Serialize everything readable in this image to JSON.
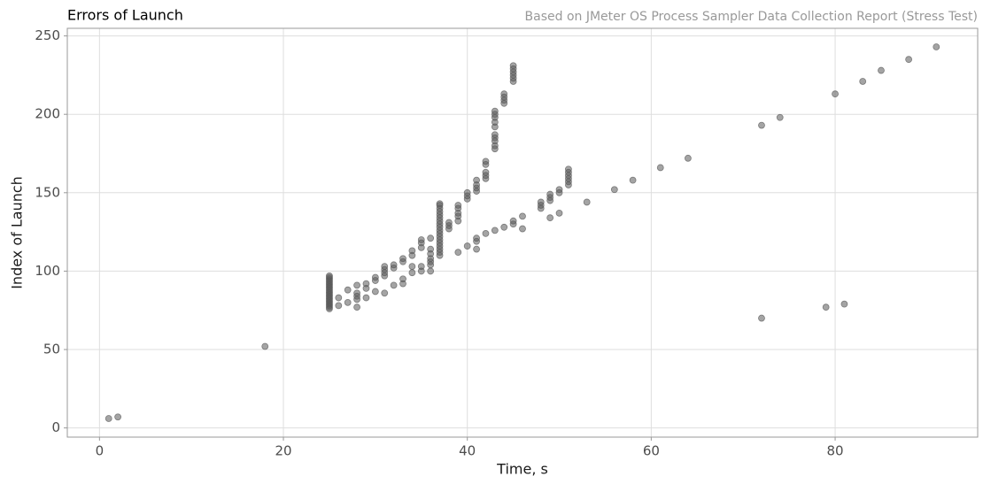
{
  "chart_data": {
    "type": "scatter",
    "title": "Errors of Launch",
    "subtitle": "Based on JMeter OS Process Sampler Data Collection Report (Stress Test)",
    "x_label": "Time, s",
    "y_label": "Index of Launch",
    "color": "#595959",
    "grid": true,
    "xlim": [
      -3.5,
      95.5
    ],
    "ylim": [
      -5.85,
      254.85
    ],
    "xticks": [
      0,
      20,
      40,
      60,
      80
    ],
    "yticks": [
      0,
      50,
      100,
      150,
      200,
      250
    ],
    "x": [
      1,
      2,
      18,
      25,
      25,
      25,
      25,
      25,
      25,
      25,
      25,
      25,
      25,
      25,
      25,
      25,
      25,
      25,
      25,
      25,
      25,
      25,
      25,
      25,
      25,
      26,
      26,
      27,
      27,
      28,
      28,
      28,
      28,
      28,
      29,
      29,
      29,
      30,
      30,
      30,
      31,
      31,
      31,
      31,
      31,
      32,
      32,
      32,
      33,
      33,
      33,
      33,
      34,
      34,
      34,
      34,
      35,
      35,
      35,
      35,
      35,
      36,
      36,
      36,
      36,
      36,
      36,
      36,
      37,
      37,
      37,
      37,
      37,
      37,
      37,
      37,
      37,
      37,
      37,
      37,
      37,
      37,
      37,
      37,
      37,
      37,
      38,
      38,
      38,
      39,
      39,
      39,
      39,
      39,
      39,
      40,
      40,
      40,
      40,
      41,
      41,
      41,
      41,
      41,
      41,
      41,
      42,
      42,
      42,
      42,
      42,
      42,
      43,
      43,
      43,
      43,
      43,
      43,
      43,
      43,
      43,
      43,
      43,
      44,
      44,
      44,
      44,
      44,
      45,
      45,
      45,
      45,
      45,
      45,
      45,
      45,
      46,
      46,
      48,
      48,
      48,
      49,
      49,
      49,
      49,
      50,
      50,
      50,
      51,
      51,
      51,
      51,
      51,
      51,
      53,
      56,
      58,
      61,
      64,
      72,
      72,
      74,
      79,
      80,
      81,
      83,
      85,
      88,
      91
    ],
    "values": [
      6,
      7,
      52,
      76,
      77,
      78,
      79,
      80,
      81,
      82,
      83,
      84,
      85,
      86,
      87,
      88,
      89,
      90,
      91,
      92,
      93,
      94,
      95,
      96,
      97,
      78,
      83,
      80,
      88,
      77,
      82,
      84,
      86,
      91,
      83,
      89,
      92,
      87,
      94,
      96,
      86,
      97,
      99,
      101,
      103,
      91,
      102,
      104,
      92,
      95,
      106,
      108,
      99,
      103,
      110,
      113,
      100,
      103,
      115,
      118,
      120,
      100,
      104,
      106,
      108,
      111,
      114,
      121,
      110,
      112,
      114,
      116,
      118,
      120,
      122,
      124,
      126,
      128,
      130,
      132,
      134,
      136,
      138,
      140,
      142,
      143,
      127,
      129,
      131,
      112,
      132,
      135,
      137,
      140,
      142,
      116,
      146,
      148,
      150,
      114,
      119,
      121,
      151,
      153,
      155,
      158,
      124,
      159,
      161,
      163,
      168,
      170,
      126,
      178,
      180,
      183,
      185,
      187,
      192,
      195,
      198,
      200,
      202,
      128,
      207,
      209,
      211,
      213,
      130,
      132,
      221,
      223,
      225,
      227,
      229,
      231,
      127,
      135,
      140,
      142,
      144,
      134,
      145,
      147,
      149,
      137,
      150,
      152,
      155,
      157,
      159,
      161,
      163,
      165,
      144,
      152,
      158,
      166,
      172,
      70,
      193,
      198,
      77,
      213,
      79,
      221,
      228,
      235,
      243
    ]
  }
}
